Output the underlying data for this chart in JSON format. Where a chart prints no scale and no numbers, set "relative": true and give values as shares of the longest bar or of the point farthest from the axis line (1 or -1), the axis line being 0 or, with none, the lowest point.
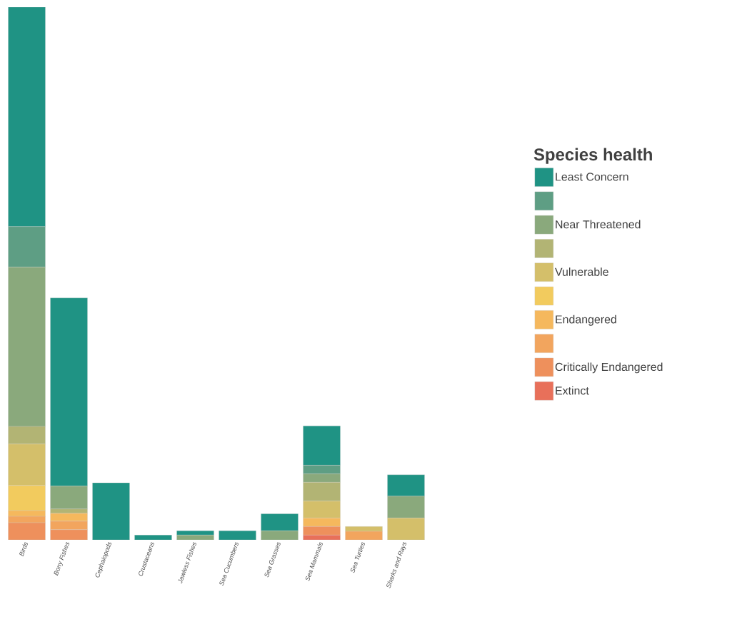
{
  "chart_data": {
    "type": "bar",
    "stacked": true,
    "relative": true,
    "legend": "right",
    "legend_title": "Species health",
    "categories": [
      "Birds",
      "Bony Fishes",
      "Cephalopods",
      "Crustaceans",
      "Jawless Fishes",
      "Sea Cucumbers",
      "Sea Grasses",
      "Sea Mammals",
      "Sea Turtles",
      "Sharks and Rays"
    ],
    "series": [
      {
        "name": "Extinct",
        "color": "#e8705a",
        "values": [
          0,
          0,
          0,
          0,
          0,
          0,
          0,
          0.009,
          0,
          0
        ]
      },
      {
        "name": "Critically Endangered",
        "color": "#ee905c",
        "values": [
          0.032,
          0.019,
          0,
          0,
          0,
          0,
          0,
          0.016,
          0,
          0
        ]
      },
      {
        "color": "#f2a55e",
        "values": [
          0.012,
          0.016,
          0,
          0,
          0,
          0,
          0,
          0,
          0.016,
          0
        ]
      },
      {
        "name": "Endangered",
        "color": "#f5b85d",
        "values": [
          0.011,
          0.015,
          0,
          0,
          0,
          0,
          0,
          0.016,
          0,
          0
        ]
      },
      {
        "color": "#f2cb5e",
        "values": [
          0.047,
          0,
          0,
          0,
          0,
          0,
          0,
          0,
          0,
          0
        ]
      },
      {
        "name": "Vulnerable",
        "color": "#d4bf6a",
        "values": [
          0.078,
          0,
          0,
          0,
          0,
          0,
          0,
          0.032,
          0.009,
          0.041
        ]
      },
      {
        "color": "#b2b474",
        "values": [
          0.033,
          0.008,
          0,
          0,
          0,
          0,
          0,
          0.035,
          0,
          0
        ]
      },
      {
        "name": "Near Threatened",
        "color": "#8aa97c",
        "values": [
          0.299,
          0.043,
          0,
          0,
          0.009,
          0,
          0.017,
          0.016,
          0,
          0.041
        ]
      },
      {
        "color": "#5e9e84",
        "values": [
          0.076,
          0,
          0,
          0,
          0,
          0,
          0,
          0.016,
          0,
          0
        ]
      },
      {
        "name": "Least Concern",
        "color": "#1f9384",
        "values": [
          0.412,
          0.353,
          0.107,
          0.009,
          0.008,
          0.017,
          0.032,
          0.074,
          0,
          0.04
        ]
      }
    ]
  }
}
